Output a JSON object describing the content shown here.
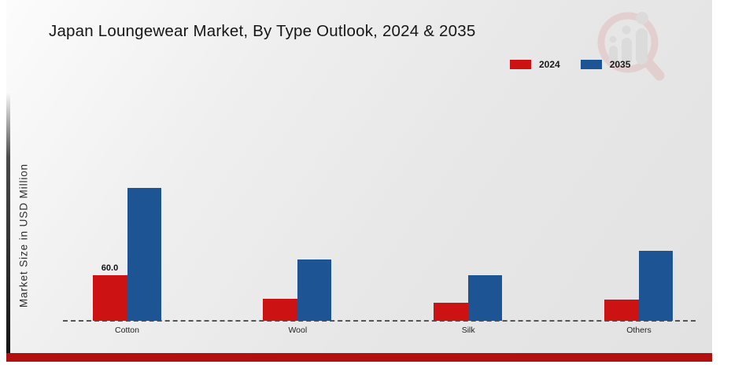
{
  "title": "Japan Loungewear Market, By Type Outlook, 2024 & 2035",
  "ylabel": "Market Size in USD Million",
  "legend": [
    {
      "label": "2024",
      "color": "#cc1212"
    },
    {
      "label": "2035",
      "color": "#1d5493"
    }
  ],
  "branding": {
    "bottom_bar_color": "#b30e10",
    "watermark_icon": "magnifier-bar-chart-logo"
  },
  "chart_data": {
    "type": "bar",
    "categories": [
      "Cotton",
      "Wool",
      "Silk",
      "Others"
    ],
    "series": [
      {
        "name": "2024",
        "color": "#cc1212",
        "values": [
          60.0,
          29,
          24,
          28
        ]
      },
      {
        "name": "2035",
        "color": "#1d5493",
        "values": [
          175,
          81,
          60,
          92
        ]
      }
    ],
    "data_labels": [
      {
        "category": "Cotton",
        "series": "2024",
        "text": "60.0"
      }
    ],
    "xlabel": "",
    "ylim": [
      0,
      185
    ],
    "grid": false,
    "y_axis_ticks": "none",
    "legend_position": "top-right",
    "baseline_style": "dashed"
  }
}
